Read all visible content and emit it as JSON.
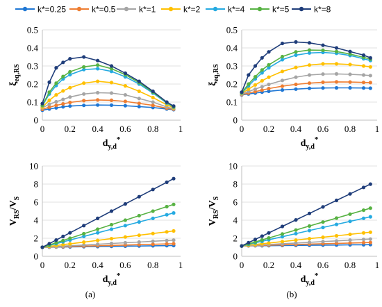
{
  "legend": {
    "placement": "top",
    "entries": [
      {
        "label": "k*=0.25",
        "color": "#1f77d4"
      },
      {
        "label": "k*=0.5",
        "color": "#ee7d31"
      },
      {
        "label": "k*=1",
        "color": "#a5a5a5"
      },
      {
        "label": "k*=2",
        "color": "#ffc000"
      },
      {
        "label": "k*=4",
        "color": "#25aae1"
      },
      {
        "label": "k*=5",
        "color": "#57b243"
      },
      {
        "label": "k*=8",
        "color": "#1f3d7a"
      }
    ]
  },
  "panel_labels": [
    "(a)",
    "(b)"
  ],
  "chart_data": [
    {
      "id": "a-top",
      "type": "line",
      "xlabel": "dy,d*",
      "ylabel": "ξeq,RS",
      "xlim": [
        0,
        1
      ],
      "ylim": [
        0,
        0.5
      ],
      "xticks": [
        "0",
        "0.2",
        "0.4",
        "0.6",
        "0.8",
        "1"
      ],
      "yticks": [
        "0",
        "0.1",
        "0.2",
        "0.3",
        "0.4",
        "0.5"
      ],
      "x": [
        0,
        0.05,
        0.1,
        0.15,
        0.2,
        0.3,
        0.4,
        0.5,
        0.6,
        0.7,
        0.8,
        0.9,
        0.95
      ],
      "series": [
        {
          "name": "k*=0.25",
          "values": [
            0.055,
            0.062,
            0.068,
            0.074,
            0.078,
            0.082,
            0.084,
            0.083,
            0.08,
            0.075,
            0.07,
            0.062,
            0.058
          ]
        },
        {
          "name": "k*=0.5",
          "values": [
            0.06,
            0.072,
            0.082,
            0.09,
            0.098,
            0.108,
            0.112,
            0.11,
            0.104,
            0.093,
            0.082,
            0.066,
            0.06
          ]
        },
        {
          "name": "k*=1",
          "values": [
            0.068,
            0.088,
            0.102,
            0.115,
            0.128,
            0.145,
            0.152,
            0.15,
            0.14,
            0.12,
            0.1,
            0.073,
            0.063
          ]
        },
        {
          "name": "k*=2",
          "values": [
            0.072,
            0.11,
            0.14,
            0.162,
            0.18,
            0.205,
            0.215,
            0.208,
            0.19,
            0.16,
            0.125,
            0.085,
            0.068
          ]
        },
        {
          "name": "k*=4",
          "values": [
            0.08,
            0.145,
            0.192,
            0.228,
            0.252,
            0.28,
            0.285,
            0.27,
            0.24,
            0.2,
            0.15,
            0.095,
            0.072
          ]
        },
        {
          "name": "k*=5",
          "values": [
            0.082,
            0.155,
            0.205,
            0.242,
            0.268,
            0.295,
            0.305,
            0.285,
            0.252,
            0.208,
            0.155,
            0.098,
            0.074
          ]
        },
        {
          "name": "k*=8",
          "values": [
            0.092,
            0.21,
            0.29,
            0.32,
            0.34,
            0.35,
            0.33,
            0.3,
            0.26,
            0.215,
            0.16,
            0.1,
            0.078
          ]
        }
      ]
    },
    {
      "id": "b-top",
      "type": "line",
      "xlabel": "dy,d*",
      "ylabel": "ξeq,RS",
      "xlim": [
        0,
        1
      ],
      "ylim": [
        0,
        0.5
      ],
      "xticks": [
        "0",
        "0.2",
        "0.4",
        "0.6",
        "0.8",
        "1"
      ],
      "yticks": [
        "0",
        "0.1",
        "0.2",
        "0.3",
        "0.4",
        "0.5"
      ],
      "x": [
        0,
        0.05,
        0.1,
        0.15,
        0.2,
        0.3,
        0.4,
        0.5,
        0.6,
        0.7,
        0.8,
        0.9,
        0.95
      ],
      "series": [
        {
          "name": "k*=0.25",
          "values": [
            0.14,
            0.145,
            0.15,
            0.155,
            0.16,
            0.167,
            0.172,
            0.176,
            0.178,
            0.179,
            0.179,
            0.178,
            0.177
          ]
        },
        {
          "name": "k*=0.5",
          "values": [
            0.142,
            0.15,
            0.158,
            0.166,
            0.175,
            0.188,
            0.198,
            0.205,
            0.21,
            0.212,
            0.211,
            0.209,
            0.208
          ]
        },
        {
          "name": "k*=1",
          "values": [
            0.145,
            0.158,
            0.172,
            0.185,
            0.198,
            0.22,
            0.238,
            0.25,
            0.255,
            0.256,
            0.254,
            0.25,
            0.247
          ]
        },
        {
          "name": "k*=2",
          "values": [
            0.148,
            0.172,
            0.195,
            0.218,
            0.238,
            0.27,
            0.292,
            0.305,
            0.312,
            0.312,
            0.308,
            0.3,
            0.295
          ]
        },
        {
          "name": "k*=4",
          "values": [
            0.15,
            0.19,
            0.228,
            0.262,
            0.29,
            0.335,
            0.36,
            0.372,
            0.375,
            0.37,
            0.358,
            0.34,
            0.33
          ]
        },
        {
          "name": "k*=5",
          "values": [
            0.152,
            0.2,
            0.24,
            0.278,
            0.306,
            0.352,
            0.378,
            0.388,
            0.387,
            0.38,
            0.366,
            0.348,
            0.338
          ]
        },
        {
          "name": "k*=8",
          "values": [
            0.155,
            0.25,
            0.3,
            0.345,
            0.378,
            0.425,
            0.433,
            0.428,
            0.415,
            0.4,
            0.38,
            0.36,
            0.345
          ]
        }
      ]
    },
    {
      "id": "a-bottom",
      "type": "line",
      "xlabel": "dy,d*",
      "ylabel": "VRS/VS",
      "xlim": [
        0,
        1
      ],
      "ylim": [
        0,
        10
      ],
      "xticks": [
        "0",
        "0.2",
        "0.4",
        "0.6",
        "0.8",
        "1"
      ],
      "yticks": [
        "0",
        "2",
        "4",
        "6",
        "8",
        "10"
      ],
      "x": [
        0,
        0.05,
        0.1,
        0.15,
        0.2,
        0.3,
        0.4,
        0.5,
        0.6,
        0.7,
        0.8,
        0.9,
        0.95
      ],
      "series": [
        {
          "name": "k*=0.25",
          "values": [
            1.0,
            1.01,
            1.02,
            1.03,
            1.04,
            1.06,
            1.08,
            1.1,
            1.12,
            1.14,
            1.16,
            1.18,
            1.19
          ]
        },
        {
          "name": "k*=0.5",
          "values": [
            1.0,
            1.02,
            1.05,
            1.07,
            1.09,
            1.13,
            1.17,
            1.21,
            1.25,
            1.29,
            1.33,
            1.37,
            1.39
          ]
        },
        {
          "name": "k*=1",
          "values": [
            1.0,
            1.04,
            1.08,
            1.13,
            1.17,
            1.25,
            1.33,
            1.42,
            1.5,
            1.58,
            1.67,
            1.75,
            1.79
          ]
        },
        {
          "name": "k*=2",
          "values": [
            1.0,
            1.1,
            1.19,
            1.29,
            1.38,
            1.57,
            1.76,
            1.95,
            2.14,
            2.33,
            2.52,
            2.71,
            2.81
          ]
        },
        {
          "name": "k*=4",
          "values": [
            1.0,
            1.2,
            1.4,
            1.6,
            1.8,
            2.2,
            2.6,
            3.0,
            3.4,
            3.8,
            4.2,
            4.6,
            4.8
          ]
        },
        {
          "name": "k*=5",
          "values": [
            1.0,
            1.25,
            1.5,
            1.75,
            2.0,
            2.5,
            3.0,
            3.5,
            4.0,
            4.5,
            5.0,
            5.5,
            5.75
          ]
        },
        {
          "name": "k*=8",
          "values": [
            1.0,
            1.4,
            1.8,
            2.2,
            2.6,
            3.4,
            4.2,
            5.0,
            5.8,
            6.6,
            7.4,
            8.2,
            8.6
          ]
        }
      ]
    },
    {
      "id": "b-bottom",
      "type": "line",
      "xlabel": "dy,d*",
      "ylabel": "VRS/VS",
      "xlim": [
        0,
        1
      ],
      "ylim": [
        0,
        10
      ],
      "xticks": [
        "0",
        "0.2",
        "0.4",
        "0.6",
        "0.8",
        "1"
      ],
      "yticks": [
        "0",
        "2",
        "4",
        "6",
        "8",
        "10"
      ],
      "x": [
        0,
        0.05,
        0.1,
        0.15,
        0.2,
        0.3,
        0.4,
        0.5,
        0.6,
        0.7,
        0.8,
        0.9,
        0.95
      ],
      "series": [
        {
          "name": "k*=0.25",
          "values": [
            1.15,
            1.16,
            1.17,
            1.17,
            1.18,
            1.2,
            1.21,
            1.22,
            1.24,
            1.25,
            1.27,
            1.28,
            1.29
          ]
        },
        {
          "name": "k*=0.5",
          "values": [
            1.15,
            1.17,
            1.19,
            1.21,
            1.23,
            1.27,
            1.31,
            1.35,
            1.39,
            1.43,
            1.47,
            1.51,
            1.53
          ]
        },
        {
          "name": "k*=1",
          "values": [
            1.15,
            1.19,
            1.23,
            1.27,
            1.31,
            1.39,
            1.47,
            1.55,
            1.63,
            1.71,
            1.79,
            1.87,
            1.91
          ]
        },
        {
          "name": "k*=2",
          "values": [
            1.15,
            1.23,
            1.31,
            1.39,
            1.47,
            1.63,
            1.79,
            1.95,
            2.11,
            2.27,
            2.43,
            2.59,
            2.67
          ]
        },
        {
          "name": "k*=4",
          "values": [
            1.15,
            1.32,
            1.49,
            1.66,
            1.83,
            2.17,
            2.51,
            2.85,
            3.19,
            3.53,
            3.87,
            4.21,
            4.38
          ]
        },
        {
          "name": "k*=5",
          "values": [
            1.15,
            1.37,
            1.59,
            1.81,
            2.03,
            2.47,
            2.91,
            3.35,
            3.79,
            4.23,
            4.67,
            5.11,
            5.33
          ]
        },
        {
          "name": "k*=8",
          "values": [
            1.15,
            1.51,
            1.87,
            2.23,
            2.59,
            3.31,
            4.03,
            4.75,
            5.47,
            6.19,
            6.91,
            7.63,
            7.99
          ]
        }
      ]
    }
  ]
}
